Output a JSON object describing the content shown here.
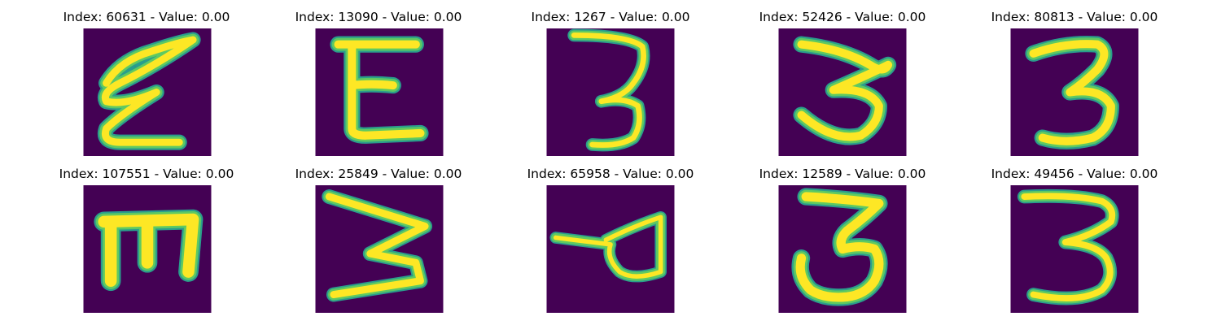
{
  "grid": {
    "items": [
      {
        "title": "Index: 60631 - Value: 0.00",
        "glyph": "written-e-zigzag-image"
      },
      {
        "title": "Index: 13090 - Value: 0.00",
        "glyph": "written-e-image"
      },
      {
        "title": "Index: 1267 - Value: 0.00",
        "glyph": "written-3-image"
      },
      {
        "title": "Index: 52426 - Value: 0.00",
        "glyph": "written-3-image"
      },
      {
        "title": "Index: 80813 - Value: 0.00",
        "glyph": "written-3-image"
      },
      {
        "title": "Index: 107551 - Value: 0.00",
        "glyph": "written-e-image"
      },
      {
        "title": "Index: 25849 - Value: 0.00",
        "glyph": "written-zigzag-image"
      },
      {
        "title": "Index: 65958 - Value: 0.00",
        "glyph": "written-loop-stroke-image"
      },
      {
        "title": "Index: 12589 - Value: 0.00",
        "glyph": "written-3-image"
      },
      {
        "title": "Index: 49456 - Value: 0.00",
        "glyph": "written-3-image"
      }
    ]
  },
  "colors": {
    "background": "#440154",
    "stroke_core": "#fde725",
    "stroke_mid": "#5ec962",
    "stroke_edge": "#2a9d8c"
  }
}
